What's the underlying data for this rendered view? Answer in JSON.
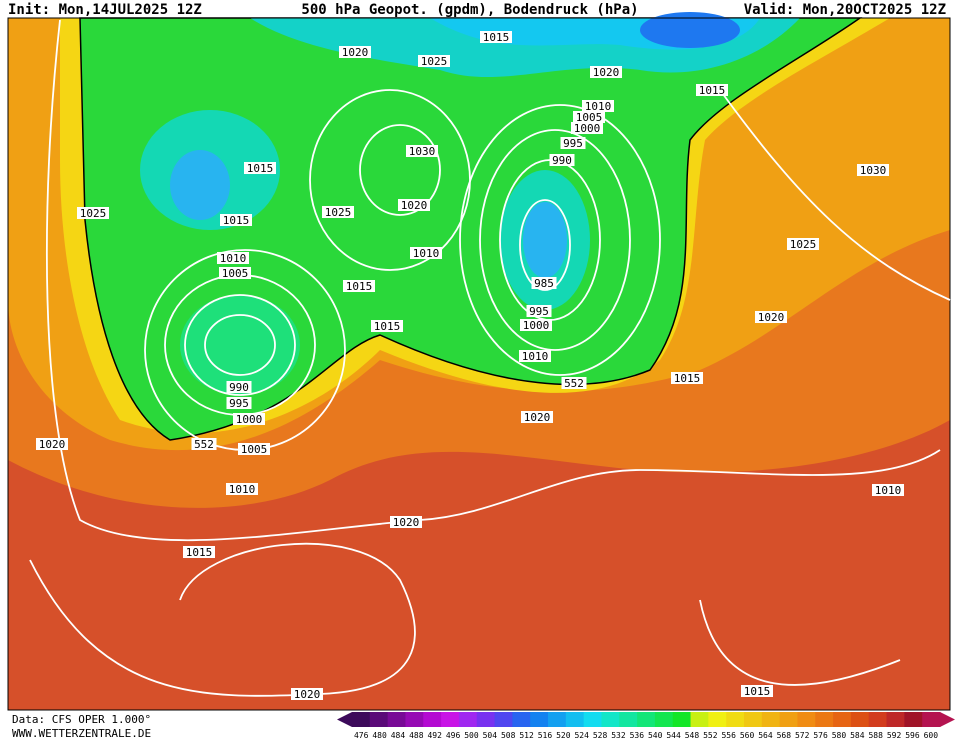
{
  "header": {
    "init": "Init: Mon,14JUL2025 12Z",
    "title": "500 hPa Geopot. (gpdm), Bodendruck (hPa)",
    "valid": "Valid: Mon,20OCT2025 12Z"
  },
  "map": {
    "isobar_labels": [
      "1020",
      "1015",
      "1025",
      "1020",
      "1015",
      "1010",
      "1005",
      "1000",
      "995",
      "990",
      "1030",
      "1015",
      "1030",
      "1025",
      "1015",
      "1025",
      "1020",
      "1010",
      "1005",
      "1010",
      "1025",
      "1015",
      "985",
      "995",
      "1000",
      "1015",
      "1020",
      "1010",
      "552",
      "1015",
      "990",
      "995",
      "1000",
      "1020",
      "1020",
      "552",
      "1005",
      "1010",
      "1010",
      "1020",
      "1015",
      "1015",
      "1020"
    ]
  },
  "legend": {
    "labels": [
      "476",
      "480",
      "484",
      "488",
      "492",
      "496",
      "500",
      "504",
      "508",
      "512",
      "516",
      "520",
      "524",
      "528",
      "532",
      "536",
      "540",
      "544",
      "548",
      "552",
      "556",
      "560",
      "564",
      "568",
      "572",
      "576",
      "580",
      "584",
      "588",
      "592",
      "596",
      "600"
    ],
    "colors": [
      "#3c0a5a",
      "#5a0a78",
      "#780a96",
      "#960ab4",
      "#b40ad2",
      "#c814e6",
      "#a028f0",
      "#7832f0",
      "#5046f0",
      "#2864f0",
      "#1482f0",
      "#14a0f0",
      "#14bef0",
      "#14dcf0",
      "#14e6c8",
      "#14e6a0",
      "#14e678",
      "#14e650",
      "#14e628",
      "#c8f014",
      "#f0f014",
      "#f0dc14",
      "#f0c814",
      "#f0b414",
      "#f0a014",
      "#f08c14",
      "#eb7814",
      "#e66414",
      "#dc5014",
      "#d23c1e",
      "#be2828",
      "#a01428",
      "#b41450"
    ]
  },
  "footer": {
    "source": "Data: CFS OPER 1.000°",
    "site": "WWW.WETTERZENTRALE.DE"
  }
}
